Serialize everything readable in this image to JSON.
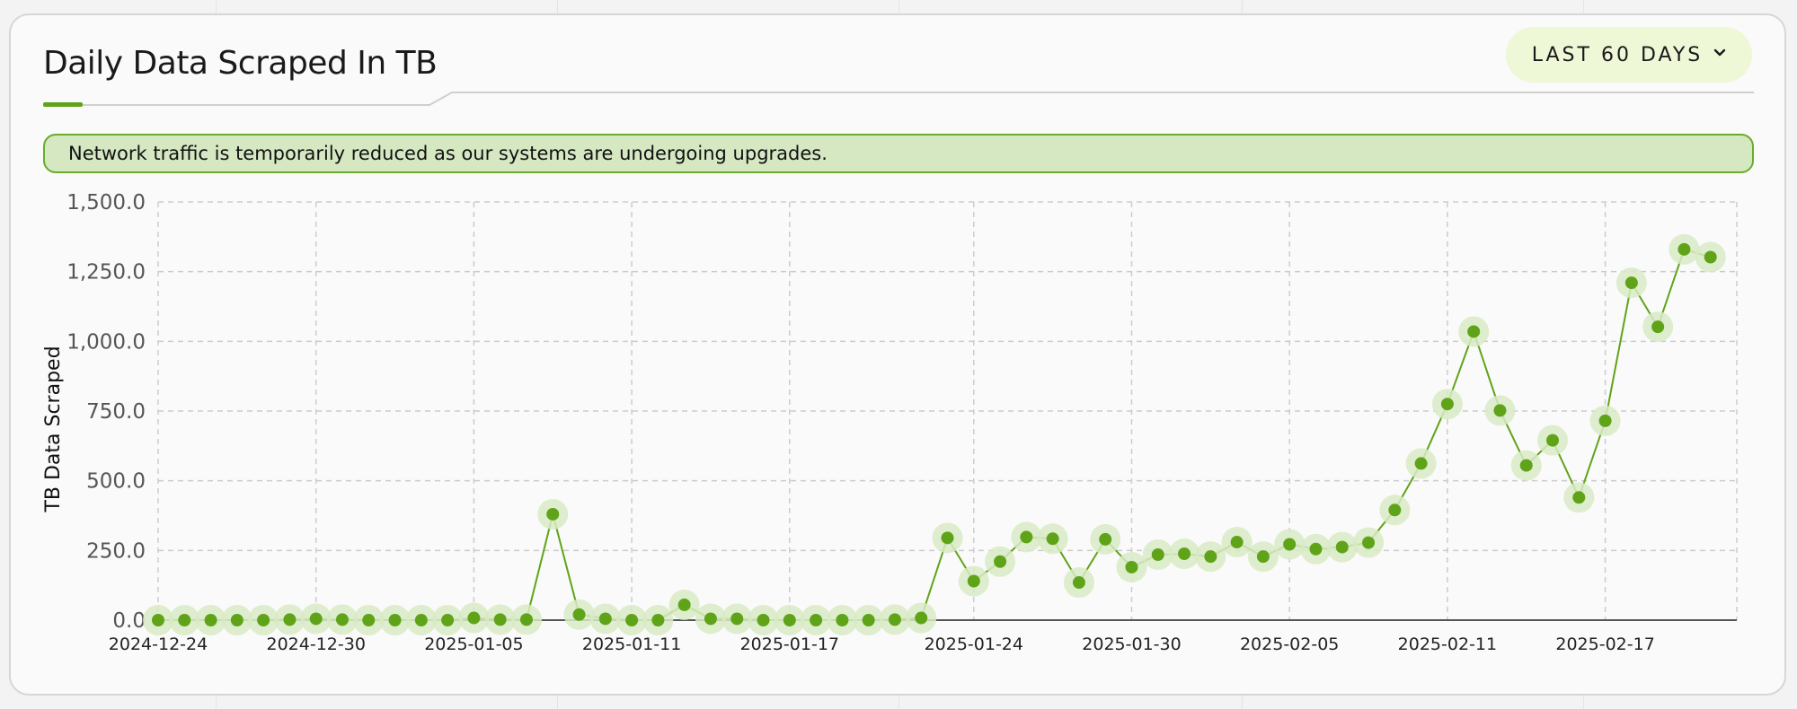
{
  "header": {
    "title": "Daily Data Scraped In TB",
    "range_label": "LAST 60 DAYS",
    "range_icon": "chevron-down-icon"
  },
  "notice": {
    "text": "Network traffic is temporarily reduced as our systems are undergoing upgrades."
  },
  "colors": {
    "accent": "#5fa418",
    "halo": "#d8eac4",
    "notice_bg": "#d5e8c2",
    "notice_border": "#6aab2c",
    "button_bg": "#eef7d6"
  },
  "chart_data": {
    "type": "line",
    "title": "Daily Data Scraped In TB",
    "xlabel": "",
    "ylabel": "TB Data Scraped",
    "ylim": [
      0,
      1500
    ],
    "yticks": [
      0,
      250,
      500,
      750,
      1000,
      1250,
      1500
    ],
    "ytick_labels": [
      "0.0",
      "250.0",
      "500.0",
      "750.0",
      "1,000.0",
      "1,250.0",
      "1,500.0"
    ],
    "xlim": [
      "2024-12-24",
      "2025-02-22"
    ],
    "xtick_labels": [
      "2024-12-24",
      "2024-12-30",
      "2025-01-05",
      "2025-01-11",
      "2025-01-17",
      "2025-01-24",
      "2025-01-30",
      "2025-02-05",
      "2025-02-11",
      "2025-02-17"
    ],
    "grid": true,
    "legend": "none",
    "series": [
      {
        "values": [
          {
            "x": "2024-12-24",
            "y": 0
          },
          {
            "x": "2024-12-25",
            "y": 0
          },
          {
            "x": "2024-12-26",
            "y": 0
          },
          {
            "x": "2024-12-27",
            "y": 0
          },
          {
            "x": "2024-12-28",
            "y": 0
          },
          {
            "x": "2024-12-29",
            "y": 2
          },
          {
            "x": "2024-12-30",
            "y": 5
          },
          {
            "x": "2024-12-31",
            "y": 2
          },
          {
            "x": "2025-01-01",
            "y": 0
          },
          {
            "x": "2025-01-02",
            "y": 0
          },
          {
            "x": "2025-01-03",
            "y": 0
          },
          {
            "x": "2025-01-04",
            "y": 0
          },
          {
            "x": "2025-01-05",
            "y": 8
          },
          {
            "x": "2025-01-06",
            "y": 2
          },
          {
            "x": "2025-01-07",
            "y": 2
          },
          {
            "x": "2025-01-08",
            "y": 380
          },
          {
            "x": "2025-01-09",
            "y": 20
          },
          {
            "x": "2025-01-10",
            "y": 5
          },
          {
            "x": "2025-01-11",
            "y": 0
          },
          {
            "x": "2025-01-12",
            "y": 0
          },
          {
            "x": "2025-01-13",
            "y": 55
          },
          {
            "x": "2025-01-14",
            "y": 5
          },
          {
            "x": "2025-01-15",
            "y": 5
          },
          {
            "x": "2025-01-16",
            "y": 0
          },
          {
            "x": "2025-01-17",
            "y": 0
          },
          {
            "x": "2025-01-18",
            "y": 0
          },
          {
            "x": "2025-01-19",
            "y": 0
          },
          {
            "x": "2025-01-20",
            "y": 0
          },
          {
            "x": "2025-01-21",
            "y": 2
          },
          {
            "x": "2025-01-22",
            "y": 8
          },
          {
            "x": "2025-01-23",
            "y": 295
          },
          {
            "x": "2025-01-24",
            "y": 140
          },
          {
            "x": "2025-01-25",
            "y": 210
          },
          {
            "x": "2025-01-26",
            "y": 298
          },
          {
            "x": "2025-01-27",
            "y": 292
          },
          {
            "x": "2025-01-28",
            "y": 135
          },
          {
            "x": "2025-01-29",
            "y": 290
          },
          {
            "x": "2025-01-30",
            "y": 190
          },
          {
            "x": "2025-01-31",
            "y": 235
          },
          {
            "x": "2025-02-01",
            "y": 238
          },
          {
            "x": "2025-02-02",
            "y": 228
          },
          {
            "x": "2025-02-03",
            "y": 280
          },
          {
            "x": "2025-02-04",
            "y": 228
          },
          {
            "x": "2025-02-05",
            "y": 272
          },
          {
            "x": "2025-02-06",
            "y": 255
          },
          {
            "x": "2025-02-07",
            "y": 262
          },
          {
            "x": "2025-02-08",
            "y": 278
          },
          {
            "x": "2025-02-09",
            "y": 395
          },
          {
            "x": "2025-02-10",
            "y": 562
          },
          {
            "x": "2025-02-11",
            "y": 775
          },
          {
            "x": "2025-02-12",
            "y": 1035
          },
          {
            "x": "2025-02-13",
            "y": 752
          },
          {
            "x": "2025-02-14",
            "y": 555
          },
          {
            "x": "2025-02-15",
            "y": 645
          },
          {
            "x": "2025-02-16",
            "y": 440
          },
          {
            "x": "2025-02-17",
            "y": 715
          },
          {
            "x": "2025-02-18",
            "y": 1210
          },
          {
            "x": "2025-02-19",
            "y": 1052
          },
          {
            "x": "2025-02-20",
            "y": 1330
          },
          {
            "x": "2025-02-21",
            "y": 1302
          }
        ]
      }
    ]
  }
}
